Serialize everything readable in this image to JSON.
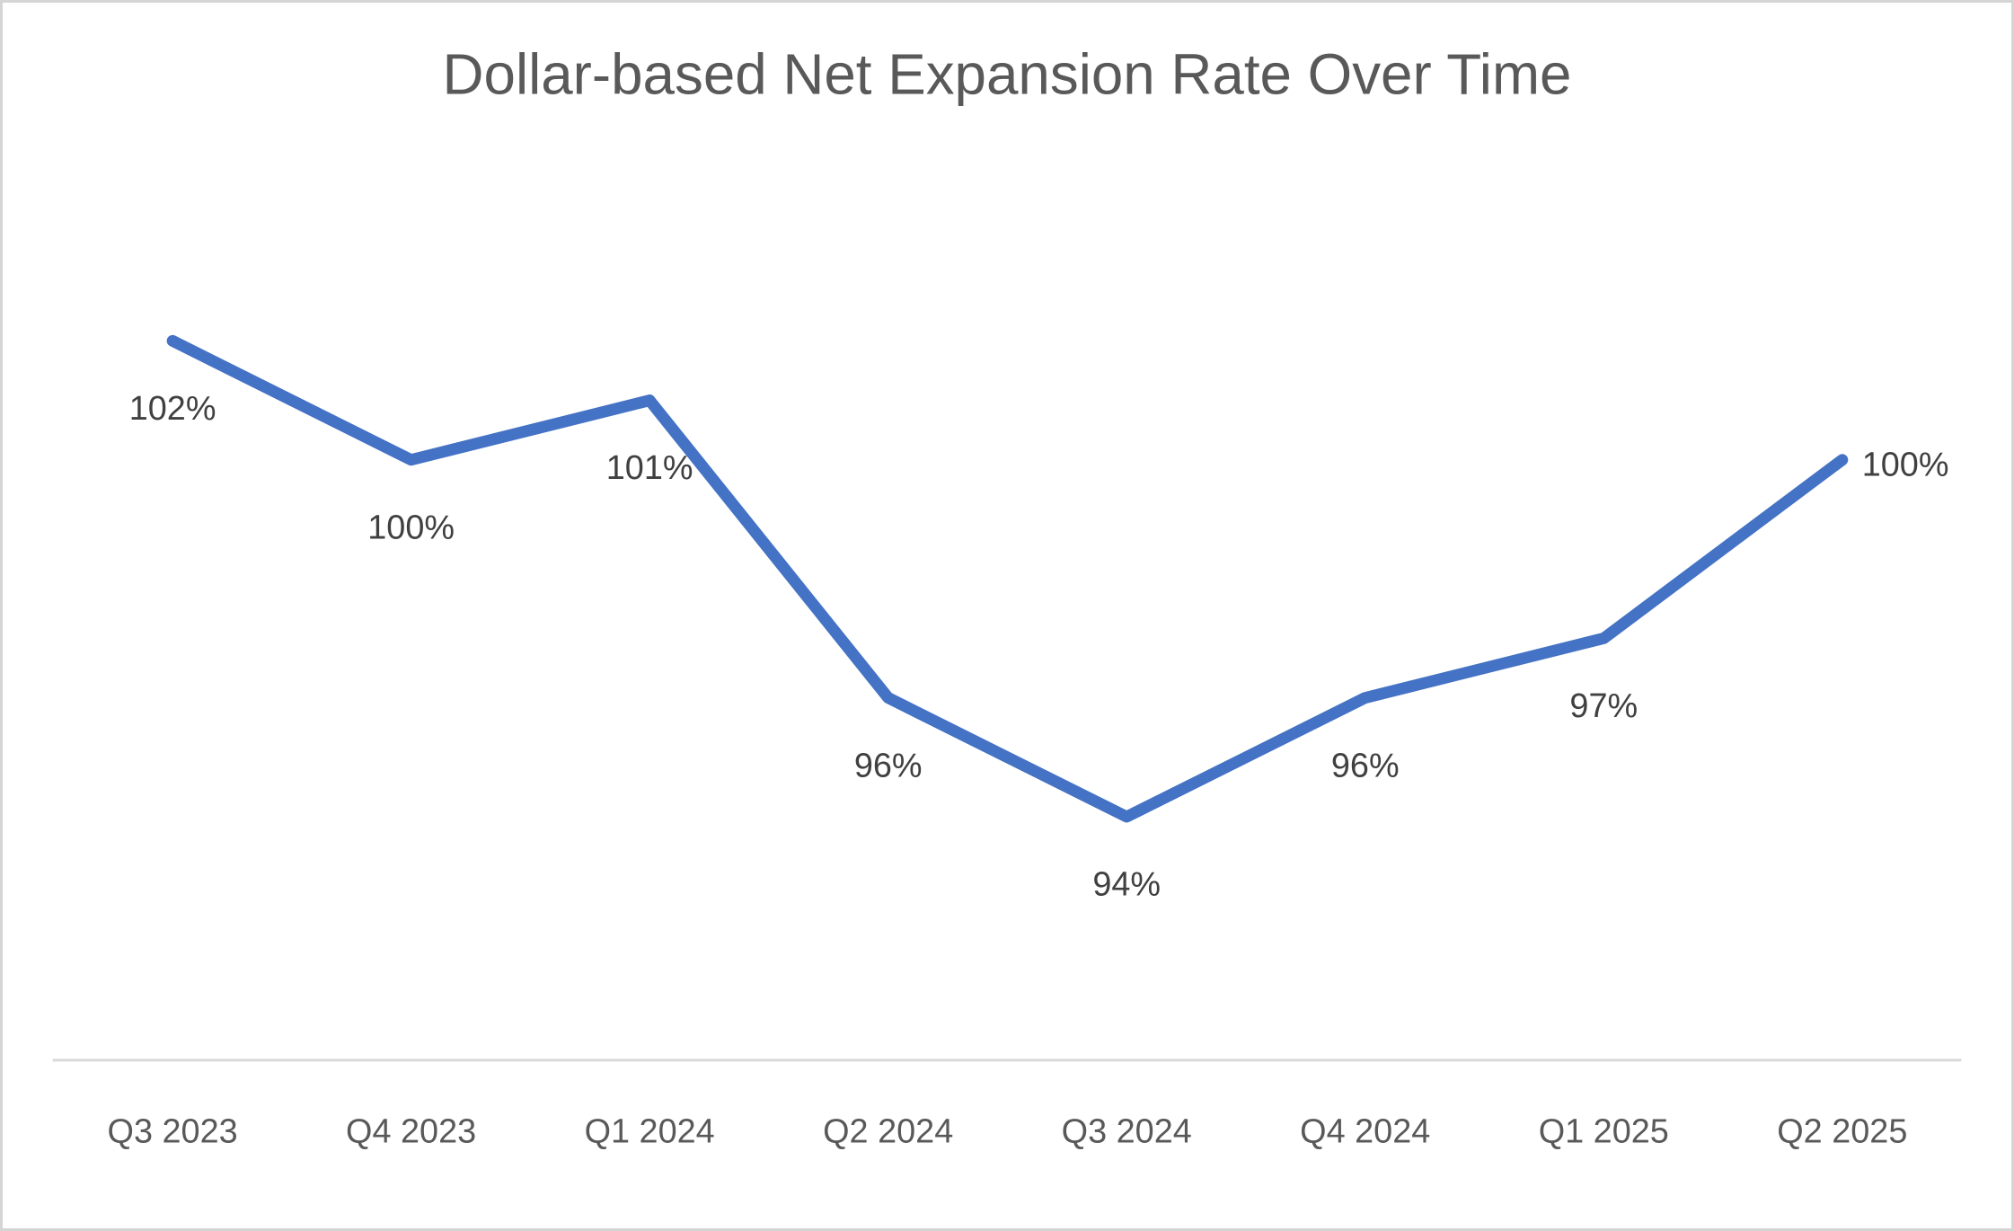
{
  "chart_data": {
    "type": "line",
    "title": "Dollar-based Net Expansion Rate Over Time",
    "categories": [
      "Q3 2023",
      "Q4 2023",
      "Q1 2024",
      "Q2 2024",
      "Q3 2024",
      "Q4 2024",
      "Q1 2025",
      "Q2 2025"
    ],
    "values": [
      102,
      100,
      101,
      96,
      94,
      96,
      97,
      100
    ],
    "data_labels": [
      "102%",
      "100%",
      "101%",
      "96%",
      "94%",
      "96%",
      "97%",
      "100%"
    ],
    "xlabel": "",
    "ylabel": "",
    "ylim": [
      90,
      103
    ],
    "grid": false,
    "legend": false,
    "y_axis_visible": false,
    "colors": {
      "line": "#4472C4",
      "axis_line": "#D9D9D9",
      "data_label": "#404040",
      "axis_label": "#595959",
      "title": "#595959",
      "background": "#FFFFFF",
      "border": "#D5D5D5"
    }
  }
}
